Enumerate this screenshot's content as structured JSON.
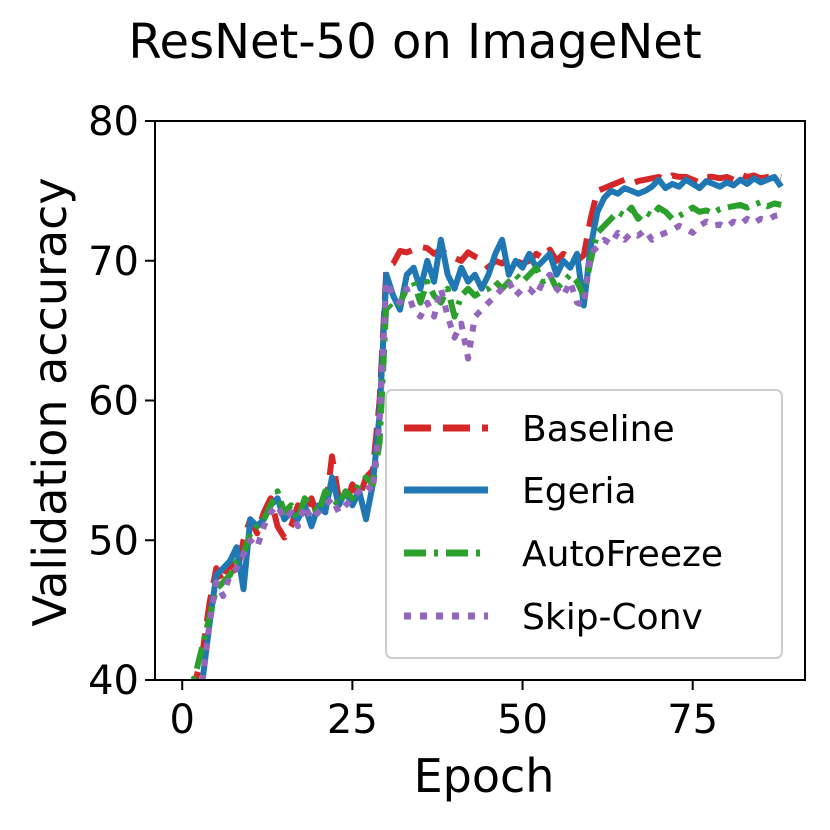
{
  "chart_data": {
    "type": "line",
    "title": "ResNet-50 on ImageNet",
    "xlabel": "Epoch",
    "ylabel": "Validation accuracy",
    "xlim": [
      -4,
      91.5
    ],
    "ylim": [
      40,
      80
    ],
    "xticks": [
      0,
      25,
      50,
      75
    ],
    "yticks": [
      40,
      50,
      60,
      70,
      80
    ],
    "grid": false,
    "legend_position": "lower-right",
    "series": [
      {
        "name": "Baseline",
        "color": "#d62728",
        "style": "dashed",
        "x": [
          0,
          1,
          2,
          3,
          4,
          5,
          6,
          7,
          8,
          9,
          10,
          11,
          12,
          13,
          14,
          15,
          16,
          17,
          18,
          19,
          20,
          21,
          22,
          23,
          24,
          25,
          26,
          27,
          28,
          29,
          30,
          31,
          32,
          33,
          34,
          35,
          36,
          37,
          38,
          39,
          40,
          41,
          42,
          43,
          44,
          45,
          46,
          47,
          48,
          49,
          50,
          51,
          52,
          53,
          54,
          55,
          56,
          57,
          58,
          59,
          60,
          61,
          62,
          63,
          64,
          65,
          66,
          67,
          68,
          69,
          70,
          71,
          72,
          73,
          74,
          75,
          76,
          77,
          78,
          79,
          80,
          81,
          82,
          83,
          84,
          85,
          86,
          87,
          88
        ],
        "values": [
          36.0,
          38.0,
          40.0,
          42.0,
          45.5,
          48.0,
          47.0,
          48.5,
          47.5,
          50.0,
          51.5,
          50.5,
          52.0,
          53.0,
          51.0,
          50.2,
          51.0,
          52.5,
          52.0,
          53.0,
          51.5,
          52.0,
          56.0,
          53.0,
          52.5,
          54.0,
          53.0,
          54.5,
          55.0,
          60.0,
          69.5,
          69.8,
          70.7,
          70.6,
          70.8,
          71.0,
          70.9,
          70.5,
          70.8,
          70.4,
          70.2,
          70.0,
          70.6,
          70.3,
          70.1,
          69.5,
          70.0,
          69.8,
          70.2,
          70.0,
          69.8,
          70.0,
          70.5,
          70.2,
          70.8,
          70.0,
          70.5,
          70.2,
          70.0,
          70.4,
          73.0,
          75.0,
          75.2,
          75.4,
          75.6,
          75.8,
          75.5,
          75.7,
          75.8,
          75.9,
          76.0,
          75.8,
          76.1,
          76.0,
          76.0,
          75.8,
          75.6,
          76.0,
          76.0,
          75.9,
          76.0,
          75.8,
          76.2,
          76.0,
          76.1,
          75.9,
          76.0,
          76.1,
          76.0
        ]
      },
      {
        "name": "Egeria",
        "color": "#1f77b4",
        "style": "solid",
        "x": [
          0,
          1,
          2,
          3,
          4,
          5,
          6,
          7,
          8,
          9,
          10,
          11,
          12,
          13,
          14,
          15,
          16,
          17,
          18,
          19,
          20,
          21,
          22,
          23,
          24,
          25,
          26,
          27,
          28,
          29,
          30,
          31,
          32,
          33,
          34,
          35,
          36,
          37,
          38,
          39,
          40,
          41,
          42,
          43,
          44,
          45,
          46,
          47,
          48,
          49,
          50,
          51,
          52,
          53,
          54,
          55,
          56,
          57,
          58,
          59,
          60,
          61,
          62,
          63,
          64,
          65,
          66,
          67,
          68,
          69,
          70,
          71,
          72,
          73,
          74,
          75,
          76,
          77,
          78,
          79,
          80,
          81,
          82,
          83,
          84,
          85,
          86,
          87,
          88
        ],
        "values": [
          36.0,
          37.0,
          38.5,
          40.0,
          44.0,
          47.5,
          48.0,
          48.5,
          49.5,
          46.5,
          51.5,
          51.0,
          51.5,
          52.5,
          53.0,
          51.5,
          52.0,
          51.5,
          52.5,
          51.0,
          52.5,
          52.0,
          54.5,
          52.5,
          53.5,
          52.5,
          53.5,
          51.5,
          54.0,
          59.0,
          69.0,
          67.5,
          66.5,
          69.0,
          69.5,
          68.0,
          70.0,
          68.5,
          71.5,
          69.0,
          68.0,
          69.5,
          68.5,
          69.0,
          68.0,
          69.0,
          70.5,
          71.5,
          69.0,
          70.0,
          69.5,
          70.5,
          69.5,
          70.0,
          70.5,
          69.0,
          70.0,
          69.5,
          70.5,
          66.8,
          71.0,
          73.5,
          74.5,
          75.0,
          74.8,
          75.2,
          75.0,
          74.8,
          75.0,
          75.3,
          75.8,
          75.2,
          75.5,
          75.3,
          75.8,
          75.5,
          75.2,
          75.7,
          75.5,
          75.3,
          75.6,
          75.4,
          75.8,
          75.5,
          75.9,
          75.6,
          75.8,
          76.0,
          75.3
        ]
      },
      {
        "name": "AutoFreeze",
        "color": "#2ca02c",
        "style": "dashdot",
        "x": [
          0,
          1,
          2,
          3,
          4,
          5,
          6,
          7,
          8,
          9,
          10,
          11,
          12,
          13,
          14,
          15,
          16,
          17,
          18,
          19,
          20,
          21,
          22,
          23,
          24,
          25,
          26,
          27,
          28,
          29,
          30,
          31,
          32,
          33,
          34,
          35,
          36,
          37,
          38,
          39,
          40,
          41,
          42,
          43,
          44,
          45,
          46,
          47,
          48,
          49,
          50,
          51,
          52,
          53,
          54,
          55,
          56,
          57,
          58,
          59,
          60,
          61,
          62,
          63,
          64,
          65,
          66,
          67,
          68,
          69,
          70,
          71,
          72,
          73,
          74,
          75,
          76,
          77,
          78,
          79,
          80,
          81,
          82,
          83,
          84,
          85,
          86,
          87,
          88
        ],
        "values": [
          38.0,
          39.0,
          40.5,
          42.5,
          44.5,
          46.5,
          47.0,
          47.5,
          48.5,
          49.0,
          50.5,
          51.0,
          51.5,
          52.5,
          53.5,
          52.0,
          52.5,
          51.5,
          53.0,
          52.5,
          52.0,
          53.5,
          53.0,
          52.5,
          53.5,
          53.0,
          54.0,
          54.5,
          54.0,
          57.0,
          67.0,
          66.5,
          67.0,
          68.0,
          68.5,
          67.0,
          68.5,
          67.5,
          67.0,
          68.0,
          66.0,
          67.5,
          68.0,
          67.5,
          67.8,
          68.0,
          68.5,
          68.0,
          68.5,
          69.0,
          68.5,
          69.0,
          69.5,
          68.5,
          69.0,
          68.0,
          68.5,
          69.0,
          68.5,
          67.5,
          70.0,
          72.0,
          72.5,
          73.0,
          73.5,
          73.2,
          73.8,
          73.0,
          73.5,
          73.2,
          73.8,
          73.5,
          73.0,
          73.2,
          73.5,
          73.8,
          73.5,
          73.6,
          73.4,
          73.7,
          73.8,
          73.9,
          74.0,
          73.8,
          74.0,
          74.2,
          73.9,
          74.1,
          74.0
        ]
      },
      {
        "name": "Skip-Conv",
        "color": "#9467bd",
        "style": "dotted",
        "x": [
          0,
          1,
          2,
          3,
          4,
          5,
          6,
          7,
          8,
          9,
          10,
          11,
          12,
          13,
          14,
          15,
          16,
          17,
          18,
          19,
          20,
          21,
          22,
          23,
          24,
          25,
          26,
          27,
          28,
          29,
          30,
          31,
          32,
          33,
          34,
          35,
          36,
          37,
          38,
          39,
          40,
          41,
          42,
          43,
          44,
          45,
          46,
          47,
          48,
          49,
          50,
          51,
          52,
          53,
          54,
          55,
          56,
          57,
          58,
          59,
          60,
          61,
          62,
          63,
          64,
          65,
          66,
          67,
          68,
          69,
          70,
          71,
          72,
          73,
          74,
          75,
          76,
          77,
          78,
          79,
          80,
          81,
          82,
          83,
          84,
          85,
          86,
          87,
          88
        ],
        "values": [
          35.5,
          37.0,
          38.5,
          40.0,
          44.0,
          47.0,
          46.0,
          47.5,
          48.0,
          49.0,
          50.0,
          49.5,
          51.0,
          52.0,
          52.5,
          51.5,
          52.0,
          51.0,
          52.5,
          51.5,
          52.0,
          52.5,
          53.0,
          52.0,
          52.5,
          53.0,
          53.5,
          54.0,
          53.5,
          58.5,
          68.5,
          67.5,
          67.0,
          68.0,
          66.5,
          66.0,
          67.0,
          66.0,
          68.0,
          66.0,
          64.5,
          65.5,
          63.0,
          66.0,
          66.5,
          67.0,
          67.5,
          68.0,
          68.5,
          67.5,
          68.0,
          68.0,
          67.5,
          68.5,
          69.0,
          68.0,
          67.5,
          68.5,
          67.0,
          66.8,
          70.5,
          71.0,
          71.5,
          71.2,
          72.0,
          71.5,
          72.0,
          71.8,
          72.2,
          71.5,
          71.8,
          72.0,
          72.2,
          72.5,
          72.3,
          72.0,
          72.5,
          72.8,
          72.5,
          72.6,
          72.4,
          72.8,
          72.6,
          73.0,
          72.7,
          73.0,
          72.9,
          73.2,
          73.3
        ]
      }
    ]
  }
}
